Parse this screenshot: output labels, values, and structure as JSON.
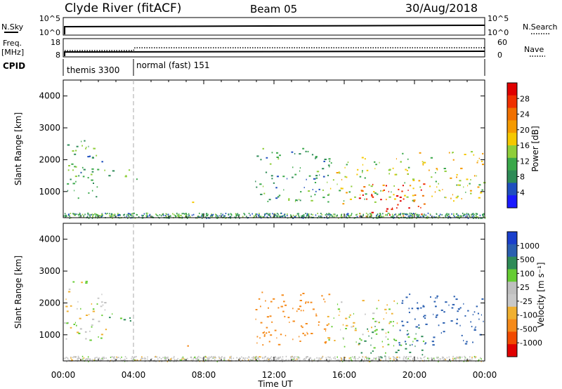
{
  "header": {
    "station": "Clyde River (fitACF)",
    "beam": "Beam 05",
    "date": "30/Aug/2018"
  },
  "strips": {
    "nsky_label": "N.Sky",
    "nsearch_label": "N.Search",
    "nsky_top_tick": "10^5",
    "nsky_bottom_tick": "10^0",
    "nsearch_top_tick": "10^5",
    "nsearch_bottom_tick": "10^0",
    "freq_label_1": "Freq.",
    "freq_label_2": "[MHz]",
    "freq_top_tick": "18",
    "freq_bottom_tick": "8",
    "nave_label": "Nave",
    "nave_top_tick": "60",
    "nave_bottom_tick": "0",
    "cpid_label": "CPID",
    "cpid_segments": [
      "themis 3300",
      "normal (fast) 151"
    ]
  },
  "colors": {
    "power": [
      "#1a1aff",
      "#1f4fbf",
      "#2e8b57",
      "#3aa84a",
      "#8fce3a",
      "#f5c800",
      "#f59a00",
      "#f07000",
      "#f03000",
      "#e00000"
    ],
    "velocity": [
      "#e00000",
      "#f24a00",
      "#f58a1a",
      "#f0b030",
      "#c8c8c8",
      "#bfbfbf",
      "#66cc33",
      "#2e8b57",
      "#2a5fb0",
      "#1a3fcc"
    ]
  },
  "chart_data": [
    {
      "type": "heatmap",
      "panel": "power",
      "ylabel": "Slant Range [km]",
      "ylim": [
        180,
        4500
      ],
      "yticks": [
        "1000",
        "2000",
        "3000",
        "4000"
      ],
      "xlim": [
        "00:00",
        "24:00"
      ],
      "colorbar_label": "Power [dB]",
      "colorbar_ticks": [
        "4",
        "8",
        "12",
        "16",
        "20",
        "24",
        "28"
      ],
      "echo_regions": [
        {
          "t": [
            0.0,
            2.4
          ],
          "r": [
            800,
            2700
          ],
          "value": 10
        },
        {
          "t": [
            2.5,
            4.2
          ],
          "r": [
            1400,
            1700
          ],
          "value": 10
        },
        {
          "t": [
            6.8,
            7.6
          ],
          "r": [
            550,
            700
          ],
          "value": 18
        },
        {
          "t": [
            10.9,
            15.2
          ],
          "r": [
            700,
            2400
          ],
          "value": 9
        },
        {
          "t": [
            15.0,
            19.0
          ],
          "r": [
            600,
            2100
          ],
          "value": 14
        },
        {
          "t": [
            16.8,
            20.6
          ],
          "r": [
            200,
            1300
          ],
          "value": 26
        },
        {
          "t": [
            19.0,
            24.0
          ],
          "r": [
            700,
            2300
          ],
          "value": 16
        }
      ]
    },
    {
      "type": "heatmap",
      "panel": "velocity",
      "ylabel": "Slant Range [km]",
      "ylim": [
        180,
        4500
      ],
      "yticks": [
        "1000",
        "2000",
        "3000",
        "4000"
      ],
      "xlabel": "Time UT",
      "xticks": [
        "00:00",
        "04:00",
        "08:00",
        "12:00",
        "16:00",
        "20:00",
        "00:00"
      ],
      "colorbar_label": "Velocity [m s⁻¹]",
      "colorbar_ticks": [
        "1000",
        "500",
        "100",
        "25",
        "-25",
        "-100",
        "-500",
        "-1000"
      ],
      "echo_regions": [
        {
          "t": [
            0.0,
            2.4
          ],
          "r": [
            800,
            2700
          ],
          "value": 0
        },
        {
          "t": [
            2.5,
            4.2
          ],
          "r": [
            1400,
            1700
          ],
          "value": 150
        },
        {
          "t": [
            6.8,
            7.6
          ],
          "r": [
            550,
            700
          ],
          "value": -200
        },
        {
          "t": [
            10.9,
            15.2
          ],
          "r": [
            700,
            2400
          ],
          "value": -300
        },
        {
          "t": [
            15.0,
            19.0
          ],
          "r": [
            600,
            2100
          ],
          "value": 0
        },
        {
          "t": [
            16.8,
            20.6
          ],
          "r": [
            200,
            1300
          ],
          "value": 150
        },
        {
          "t": [
            19.0,
            24.0
          ],
          "r": [
            700,
            2300
          ],
          "value": 600
        }
      ]
    }
  ]
}
